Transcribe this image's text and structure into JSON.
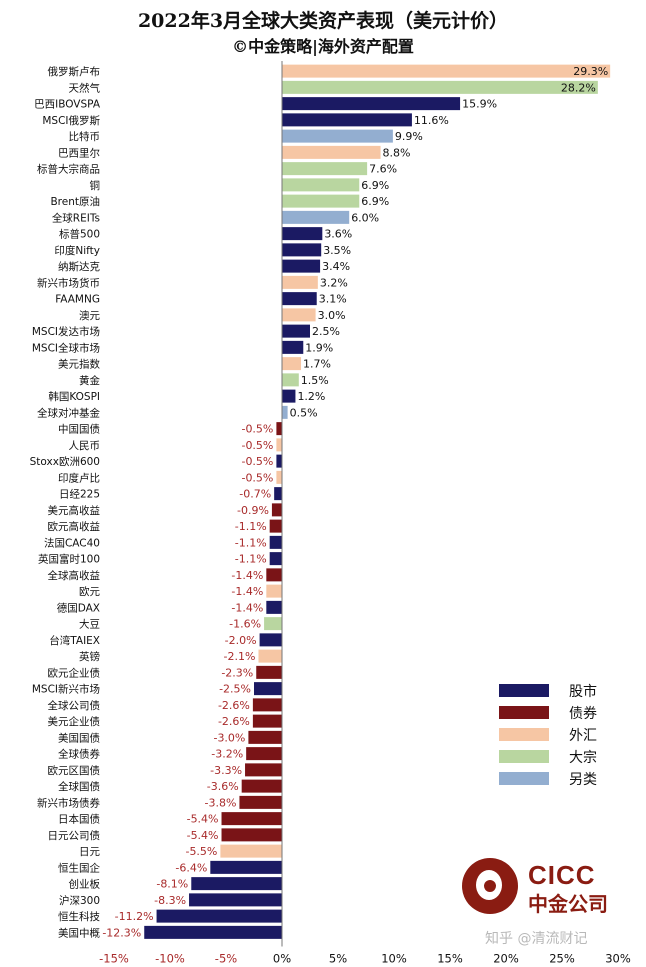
{
  "chart_data": {
    "type": "bar",
    "orientation": "horizontal",
    "title": "2022年3月全球大类资产表现（美元计价）",
    "subtitle": "©中金策略|海外资产配置",
    "xlim": [
      -15,
      30
    ],
    "x_ticks": [
      "-15%",
      "-10%",
      "-5%",
      "0%",
      "5%",
      "10%",
      "15%",
      "20%",
      "25%",
      "30%"
    ],
    "colors": {
      "股市": "#1b1a63",
      "债券": "#7a1417",
      "外汇": "#f6c6a4",
      "大宗": "#b9d6a0",
      "另类": "#93aed0",
      "negative_label": "#a82a2a",
      "positive_label": "#111111"
    },
    "legend": {
      "position": "bottom-right",
      "items": [
        "股市",
        "债券",
        "外汇",
        "大宗",
        "另类"
      ]
    },
    "categories": [
      "俄罗斯卢布",
      "天然气",
      "巴西IBOVSPA",
      "MSCI俄罗斯",
      "比特币",
      "巴西里尔",
      "标普大宗商品",
      "铜",
      "Brent原油",
      "全球REITs",
      "标普500",
      "印度Nifty",
      "纳斯达克",
      "新兴市场货币",
      "FAAMNG",
      "澳元",
      "MSCI发达市场",
      "MSCI全球市场",
      "美元指数",
      "黄金",
      "韩国KOSPI",
      "全球对冲基金",
      "中国国债",
      "人民币",
      "Stoxx欧洲600",
      "印度卢比",
      "日经225",
      "美元高收益",
      "欧元高收益",
      "法国CAC40",
      "英国富时100",
      "全球高收益",
      "欧元",
      "德国DAX",
      "大豆",
      "台湾TAIEX",
      "英镑",
      "欧元企业债",
      "MSCI新兴市场",
      "全球公司债",
      "美元企业债",
      "美国国债",
      "全球债券",
      "欧元区国债",
      "全球国债",
      "新兴市场债券",
      "日本国债",
      "日元公司债",
      "日元",
      "恒生国企",
      "创业板",
      "沪深300",
      "恒生科技",
      "美国中概"
    ],
    "values": [
      29.3,
      28.2,
      15.9,
      11.6,
      9.9,
      8.8,
      7.6,
      6.9,
      6.9,
      6.0,
      3.6,
      3.5,
      3.4,
      3.2,
      3.1,
      3.0,
      2.5,
      1.9,
      1.7,
      1.5,
      1.2,
      0.5,
      -0.5,
      -0.5,
      -0.5,
      -0.5,
      -0.7,
      -0.9,
      -1.1,
      -1.1,
      -1.1,
      -1.4,
      -1.4,
      -1.4,
      -1.6,
      -2.0,
      -2.1,
      -2.3,
      -2.5,
      -2.6,
      -2.6,
      -3.0,
      -3.2,
      -3.3,
      -3.6,
      -3.8,
      -5.4,
      -5.4,
      -5.5,
      -6.4,
      -8.1,
      -8.3,
      -11.2,
      -12.3
    ],
    "asset_class": [
      "外汇",
      "大宗",
      "股市",
      "股市",
      "另类",
      "外汇",
      "大宗",
      "大宗",
      "大宗",
      "另类",
      "股市",
      "股市",
      "股市",
      "外汇",
      "股市",
      "外汇",
      "股市",
      "股市",
      "外汇",
      "大宗",
      "股市",
      "另类",
      "债券",
      "外汇",
      "股市",
      "外汇",
      "股市",
      "债券",
      "债券",
      "股市",
      "股市",
      "债券",
      "外汇",
      "股市",
      "大宗",
      "股市",
      "外汇",
      "债券",
      "股市",
      "债券",
      "债券",
      "债券",
      "债券",
      "债券",
      "债券",
      "债券",
      "债券",
      "债券",
      "外汇",
      "股市",
      "股市",
      "股市",
      "股市",
      "股市"
    ],
    "value_labels": [
      "29.3%",
      "28.2%",
      "15.9%",
      "11.6%",
      "9.9%",
      "8.8%",
      "7.6%",
      "6.9%",
      "6.9%",
      "6.0%",
      "3.6%",
      "3.5%",
      "3.4%",
      "3.2%",
      "3.1%",
      "3.0%",
      "2.5%",
      "1.9%",
      "1.7%",
      "1.5%",
      "1.2%",
      "0.5%",
      "-0.5%",
      "-0.5%",
      "-0.5%",
      "-0.5%",
      "-0.7%",
      "-0.9%",
      "-1.1%",
      "-1.1%",
      "-1.1%",
      "-1.4%",
      "-1.4%",
      "-1.4%",
      "-1.6%",
      "-2.0%",
      "-2.1%",
      "-2.3%",
      "-2.5%",
      "-2.6%",
      "-2.6%",
      "-3.0%",
      "-3.2%",
      "-3.3%",
      "-3.6%",
      "-3.8%",
      "-5.4%",
      "-5.4%",
      "-5.5%",
      "-6.4%",
      "-8.1%",
      "-8.3%",
      "-11.2%",
      "-12.3%"
    ]
  },
  "logo": {
    "english": "CICC",
    "chinese": "中金公司"
  },
  "watermark": "知乎 @清流财记"
}
